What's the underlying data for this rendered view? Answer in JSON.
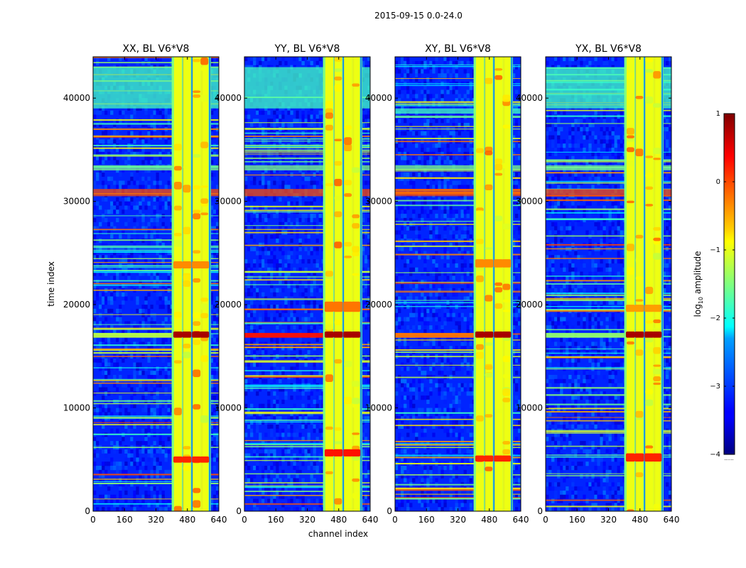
{
  "figure": {
    "suptitle": "2015-09-15 0.0-24.0",
    "xlabel": "channel index",
    "ylabel": "time index"
  },
  "colorbar": {
    "label_prefix": "log",
    "label_sub": "10",
    "label_suffix": " amplitude",
    "ticks": [
      "1",
      "0",
      "−1",
      "−2",
      "−3",
      "−4"
    ],
    "tick_values": [
      1,
      0,
      -1,
      -2,
      -3,
      -4
    ],
    "range": [
      -4,
      1
    ],
    "colormap": "jet",
    "extra_label": "......"
  },
  "chart_data": [
    {
      "type": "heatmap",
      "title": "XX, BL V6*V8",
      "xlim": [
        0,
        640
      ],
      "ylim": [
        0,
        44000
      ],
      "xticks": [
        0,
        160,
        320,
        480,
        640
      ],
      "yticks": [
        0,
        10000,
        20000,
        30000,
        40000
      ],
      "xtick_labels": [
        "0",
        "160",
        "320",
        "480",
        "640"
      ],
      "ytick_labels": [
        "0",
        "10000",
        "20000",
        "30000",
        "40000"
      ],
      "background_level": -3.2,
      "band_channels": [
        400,
        600
      ],
      "bright_channels": [
        430,
        475,
        525,
        565
      ],
      "spike_rows": [
        [
          16800,
          17400,
          0.8
        ],
        [
          4700,
          5300,
          0.2
        ],
        [
          23500,
          24200,
          -0.3
        ]
      ],
      "rfi_rows": [
        [
          30500,
          31200,
          0.0
        ],
        [
          33000,
          33500,
          -1.5
        ],
        [
          39000,
          43000,
          -1.8
        ]
      ],
      "horizontal_spike_level": -1.2
    },
    {
      "type": "heatmap",
      "title": "YY, BL V6*V8",
      "xlim": [
        0,
        640
      ],
      "ylim": [
        0,
        44000
      ],
      "xticks": [
        0,
        160,
        320,
        480,
        640
      ],
      "yticks": [
        0,
        10000,
        20000,
        30000,
        40000
      ],
      "xtick_labels": [
        "0",
        "160",
        "320",
        "480",
        "640"
      ],
      "ytick_labels": [
        "0",
        "10000",
        "20000",
        "30000",
        "40000"
      ],
      "background_level": -3.2,
      "band_channels": [
        400,
        600
      ],
      "bright_channels": [
        430,
        475,
        525,
        565
      ],
      "spike_rows": [
        [
          16800,
          17400,
          0.8
        ],
        [
          5300,
          6000,
          0.3
        ],
        [
          19300,
          20300,
          -0.2
        ]
      ],
      "rfi_rows": [
        [
          30500,
          31200,
          0.0
        ],
        [
          33000,
          33500,
          -1.5
        ],
        [
          39000,
          43000,
          -1.8
        ]
      ],
      "horizontal_spike_level": 0.3
    },
    {
      "type": "heatmap",
      "title": "XY, BL V6*V8",
      "xlim": [
        0,
        640
      ],
      "ylim": [
        0,
        44000
      ],
      "xticks": [
        0,
        160,
        320,
        480,
        640
      ],
      "yticks": [
        0,
        10000,
        20000,
        30000,
        40000
      ],
      "xtick_labels": [
        "0",
        "160",
        "320",
        "480",
        "640"
      ],
      "ytick_labels": [
        "0",
        "10000",
        "20000",
        "30000",
        "40000"
      ],
      "background_level": -3.2,
      "band_channels": [
        400,
        600
      ],
      "bright_channels": [
        430,
        475,
        525,
        565
      ],
      "spike_rows": [
        [
          16800,
          17400,
          0.8
        ],
        [
          4800,
          5400,
          0.2
        ],
        [
          23600,
          24400,
          -0.3
        ]
      ],
      "rfi_rows": [
        [
          30500,
          31200,
          0.0
        ],
        [
          33000,
          33500,
          -1.5
        ],
        [
          38500,
          39000,
          -1.8
        ]
      ],
      "horizontal_spike_level": -0.2
    },
    {
      "type": "heatmap",
      "title": "YX, BL V6*V8",
      "xlim": [
        0,
        640
      ],
      "ylim": [
        0,
        44000
      ],
      "xticks": [
        0,
        160,
        320,
        480,
        640
      ],
      "yticks": [
        0,
        10000,
        20000,
        30000,
        40000
      ],
      "xtick_labels": [
        "0",
        "160",
        "320",
        "480",
        "640"
      ],
      "ytick_labels": [
        "0",
        "10000",
        "20000",
        "30000",
        "40000"
      ],
      "background_level": -3.2,
      "band_channels": [
        400,
        600
      ],
      "bright_channels": [
        430,
        475,
        525,
        565
      ],
      "spike_rows": [
        [
          16800,
          17400,
          0.8
        ],
        [
          4800,
          5600,
          0.2
        ],
        [
          19300,
          20000,
          -0.4
        ]
      ],
      "rfi_rows": [
        [
          30500,
          31200,
          0.0
        ],
        [
          33000,
          33500,
          -1.5
        ],
        [
          39000,
          43000,
          -1.8
        ]
      ],
      "horizontal_spike_level": -1.4
    }
  ]
}
